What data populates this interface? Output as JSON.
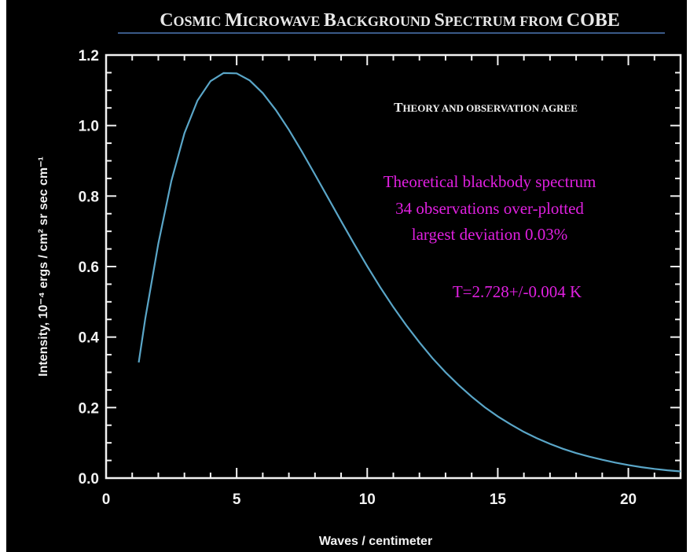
{
  "chart_data": {
    "type": "line",
    "title": "Cosmic Microwave Background Spectrum from COBE",
    "xlabel": "Waves / centimeter",
    "ylabel": "Intensity, 10⁻⁴ ergs / cm² sr sec cm⁻¹",
    "xlim": [
      0,
      22
    ],
    "ylim": [
      0,
      1.2
    ],
    "x_ticks": [
      "0",
      "5",
      "10",
      "15",
      "20"
    ],
    "y_ticks": [
      "0.0",
      "0.2",
      "0.4",
      "0.6",
      "0.8",
      "1.0",
      "1.2"
    ],
    "annotation_heading": "Theory and observation agree",
    "annotation_lines": [
      "Theoretical blackbody spectrum",
      "34 observations over-plotted",
      "largest deviation 0.03%"
    ],
    "temperature_label": "T=2.728+/-0.004 K",
    "colors": {
      "curve": "#5aa6c8",
      "annotation": "#e020e0",
      "axes": "#f2f2f2"
    },
    "series": [
      {
        "x": [
          1.25,
          1.5,
          2,
          2.5,
          3,
          3.5,
          4,
          4.5,
          5,
          5.5,
          6,
          6.5,
          7,
          7.5,
          8,
          8.5,
          9,
          9.5,
          10,
          10.5,
          11,
          11.5,
          12,
          12.5,
          13,
          13.5,
          14,
          14.5,
          15,
          15.5,
          16,
          16.5,
          17,
          17.5,
          18,
          18.5,
          19,
          19.5,
          20,
          20.5,
          21,
          21.5,
          22
        ],
        "values": [
          0.328,
          0.452,
          0.665,
          0.843,
          0.978,
          1.071,
          1.126,
          1.149,
          1.148,
          1.128,
          1.092,
          1.044,
          0.988,
          0.926,
          0.861,
          0.795,
          0.729,
          0.664,
          0.601,
          0.541,
          0.485,
          0.433,
          0.385,
          0.34,
          0.3,
          0.264,
          0.231,
          0.201,
          0.175,
          0.152,
          0.131,
          0.113,
          0.097,
          0.083,
          0.071,
          0.061,
          0.052,
          0.044,
          0.037,
          0.031,
          0.026,
          0.022,
          0.019
        ]
      }
    ]
  }
}
